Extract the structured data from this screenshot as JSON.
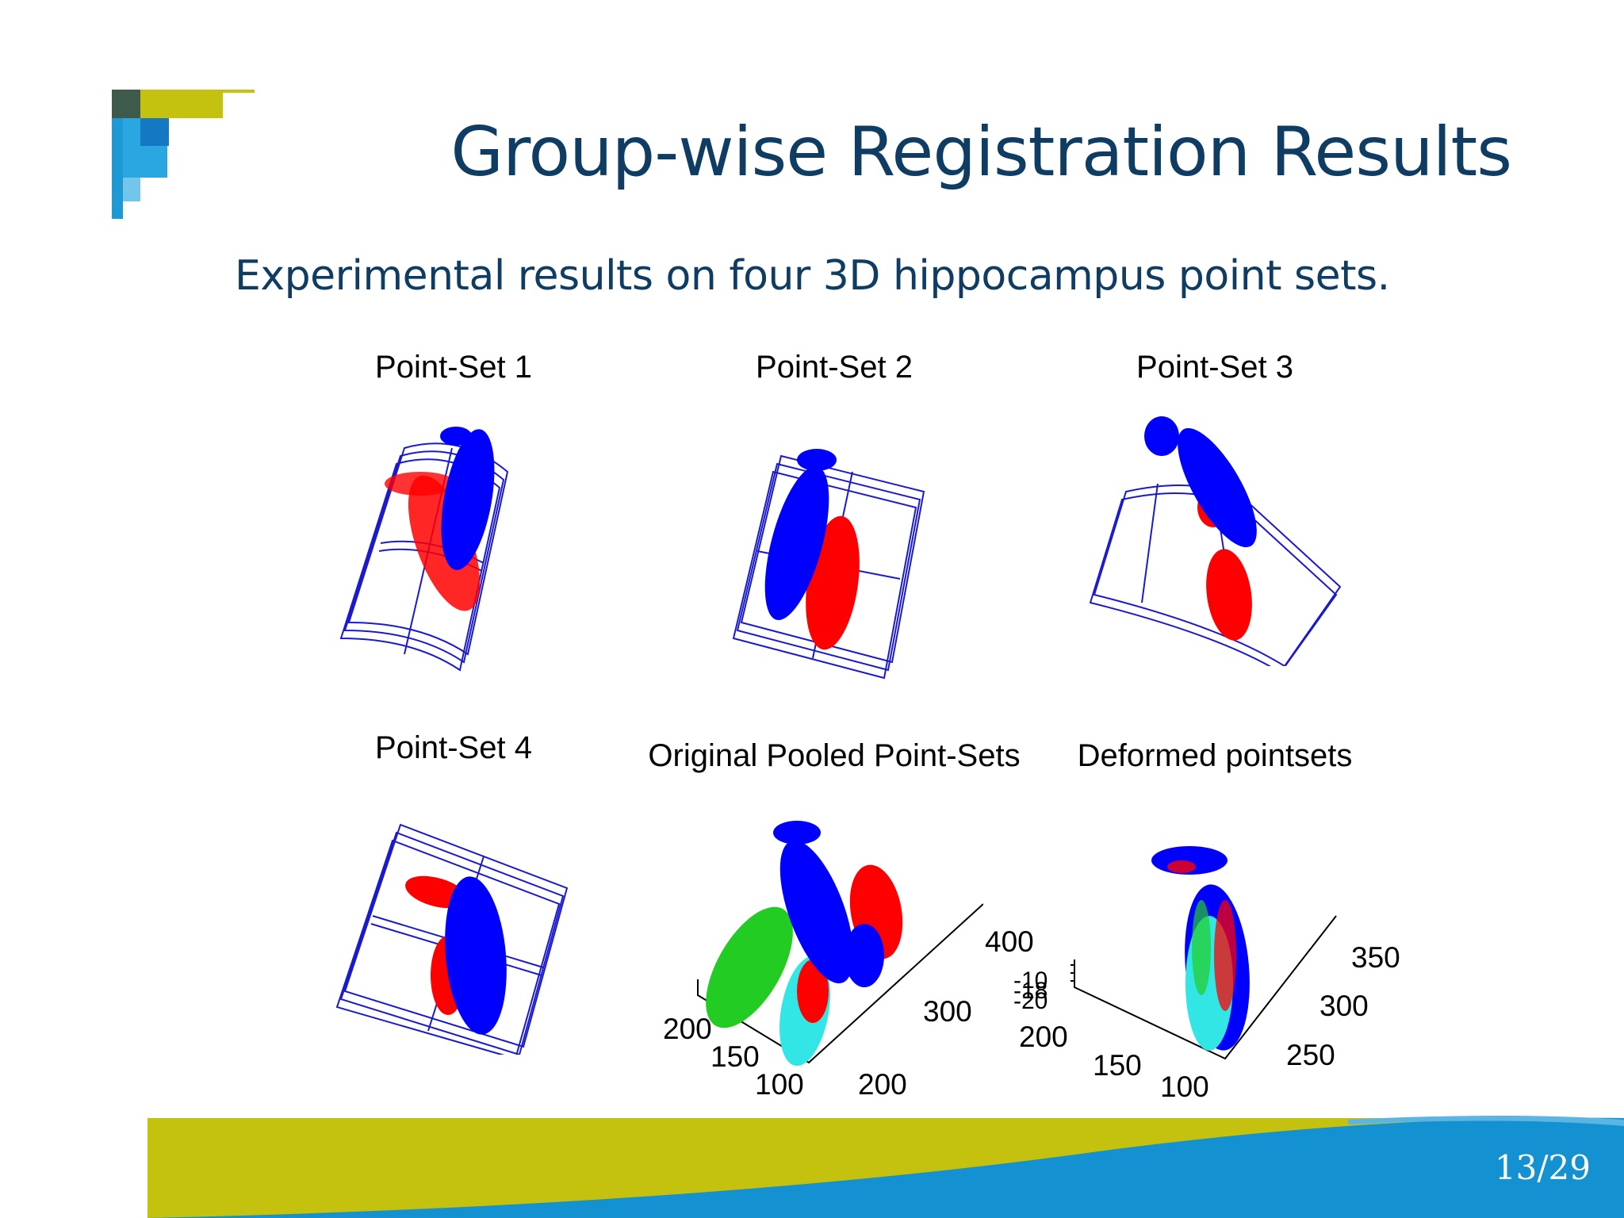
{
  "slide": {
    "title": "Group-wise Registration Results",
    "subtitle": "Experimental results on four 3D hippocampus point sets.",
    "page_number": "13/29"
  },
  "figure": {
    "panels": [
      {
        "label": "Point-Set 1"
      },
      {
        "label": "Point-Set 2"
      },
      {
        "label": "Point-Set 3"
      },
      {
        "label": "Point-Set 4"
      },
      {
        "label": "Original Pooled Point-Sets",
        "ticks_left": [
          "200",
          "150",
          "100"
        ],
        "ticks_right": [
          "200",
          "300",
          "400"
        ]
      },
      {
        "label": "Deformed pointsets",
        "ticks_z": [
          "-10",
          "-18",
          "-20"
        ],
        "ticks_left": [
          "200",
          "150",
          "100"
        ],
        "ticks_right": [
          "250",
          "300",
          "350"
        ]
      }
    ]
  },
  "colors": {
    "title": "#0e3c62",
    "series_blue": "#0000ff",
    "series_red": "#ff0000",
    "series_green": "#00cc00",
    "series_cyan": "#33e6e6",
    "footer_olive": "#c4c10f",
    "footer_blue": "#1391d0"
  }
}
